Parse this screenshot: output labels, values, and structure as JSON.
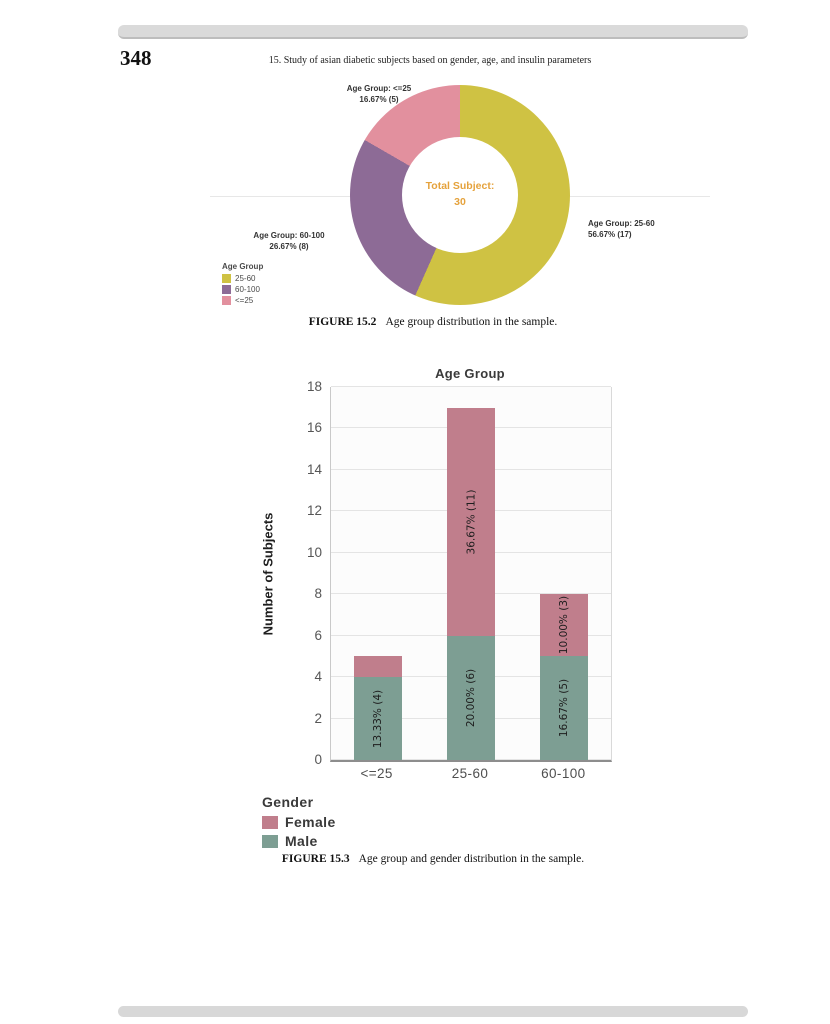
{
  "page": {
    "number": "348",
    "running_header": "15.  Study of asian diabetic subjects based on gender, age, and insulin parameters"
  },
  "figure2": {
    "center_label": "Total Subject:",
    "center_value": "30",
    "legend_title": "Age Group",
    "callouts": [
      {
        "line1": "Age Group: <=25",
        "line2": "16.67% (5)"
      },
      {
        "line1": "Age Group: 25-60",
        "line2": "56.67% (17)"
      },
      {
        "line1": "Age Group: 60-100",
        "line2": "26.67% (8)"
      }
    ],
    "caption_label": "FIGURE 15.2",
    "caption_text": "Age group distribution in the sample."
  },
  "figure3": {
    "title": "Age Group",
    "ylabel": "Number of Subjects",
    "legend_title": "Gender",
    "caption_label": "FIGURE 15.3",
    "caption_text": "Age group and gender distribution in the sample."
  },
  "chart_data": [
    {
      "type": "pie",
      "donut": true,
      "title": "Age Group",
      "labels": [
        "25-60",
        "60-100",
        "<=25"
      ],
      "values": [
        17,
        8,
        5
      ],
      "percent_labels": [
        "56.67% (17)",
        "26.67% (8)",
        "16.67% (5)"
      ],
      "total": 30,
      "center_text": "Total Subject: 30",
      "colors": [
        "#cfc243",
        "#8d6b96",
        "#e2909e"
      ],
      "legend_position": "bottom-left"
    },
    {
      "type": "bar",
      "stacked": true,
      "title": "Age Group",
      "categories": [
        "<=25",
        "25-60",
        "60-100"
      ],
      "series": [
        {
          "name": "Male",
          "color": "#7d9e93",
          "values": [
            4,
            6,
            5
          ],
          "percent_labels": [
            "13.33% (4)",
            "20.00% (6)",
            "16.67% (5)"
          ]
        },
        {
          "name": "Female",
          "color": "#c07e8c",
          "values": [
            1,
            11,
            3
          ],
          "percent_labels": [
            "",
            "36.67% (11)",
            "10.00% (3)"
          ]
        }
      ],
      "xlabel": "",
      "ylabel": "Number of Subjects",
      "ylim": [
        0,
        18
      ],
      "ytick_step": 2,
      "grid": true,
      "legend_title": "Gender",
      "legend_entries": [
        "Female",
        "Male"
      ],
      "legend_position": "bottom-left"
    }
  ]
}
